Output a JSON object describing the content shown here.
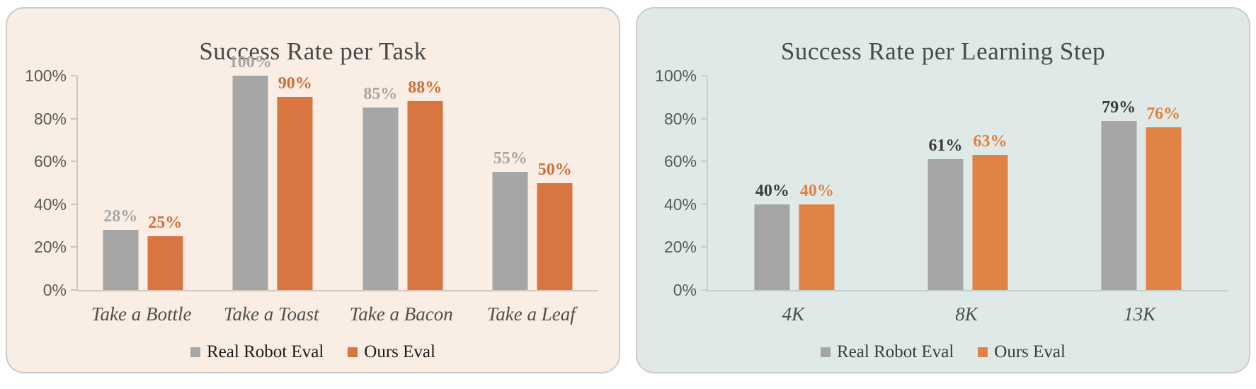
{
  "chart_data": [
    {
      "type": "bar",
      "title": "Success Rate per Task",
      "categories": [
        "Take a Bottle",
        "Take a Toast",
        "Take a Bacon",
        "Take a Leaf"
      ],
      "series": [
        {
          "name": "Real Robot Eval",
          "values": [
            28,
            100,
            85,
            55
          ],
          "bar_color": "#A6A6A6",
          "label_color": "#A6A6A6"
        },
        {
          "name": "Ours Eval",
          "values": [
            25,
            90,
            88,
            50
          ],
          "bar_color": "#D87540",
          "label_color": "#D06E36"
        }
      ],
      "data_label_suffix": "%",
      "y_tick_labels": [
        "0%",
        "20%",
        "40%",
        "60%",
        "80%",
        "100%"
      ],
      "ylim": [
        0,
        100
      ],
      "grid": false,
      "legend_position": "bottom",
      "legend_labels": [
        "Real Robot Eval",
        "Ours Eval"
      ],
      "colors": {
        "panel_background": "#FAEDE3",
        "panel_border": "#CBCBCB",
        "title": "#4A4A4A",
        "axis": "#CFC6BE",
        "y_tick_label": "#595959",
        "category_label": "#4F4F4F",
        "legend_text": "#1C1C1C"
      }
    },
    {
      "type": "bar",
      "title": "Success Rate per Learning Step",
      "categories": [
        "4K",
        "8K",
        "13K"
      ],
      "series": [
        {
          "name": "Real Robot Eval",
          "values": [
            40,
            61,
            79
          ],
          "bar_color": "#A5A5A5",
          "label_color": "#3B3B3B"
        },
        {
          "name": "Ours Eval",
          "values": [
            40,
            63,
            76
          ],
          "bar_color": "#E08145",
          "label_color": "#E08140"
        }
      ],
      "data_label_suffix": "%",
      "y_tick_labels": [
        "0%",
        "20%",
        "40%",
        "60%",
        "80%",
        "100%"
      ],
      "ylim": [
        0,
        100
      ],
      "grid": false,
      "legend_position": "bottom",
      "legend_labels": [
        "Real Robot Eval",
        "Ours Eval"
      ],
      "colors": {
        "panel_background": "#DFE9E7",
        "panel_border": "#CBCBCB",
        "title": "#4A4A4A",
        "axis": "#C3CFCD",
        "y_tick_label": "#595959",
        "category_label": "#4F4F4F",
        "legend_text": "#3D3D3D"
      }
    }
  ]
}
